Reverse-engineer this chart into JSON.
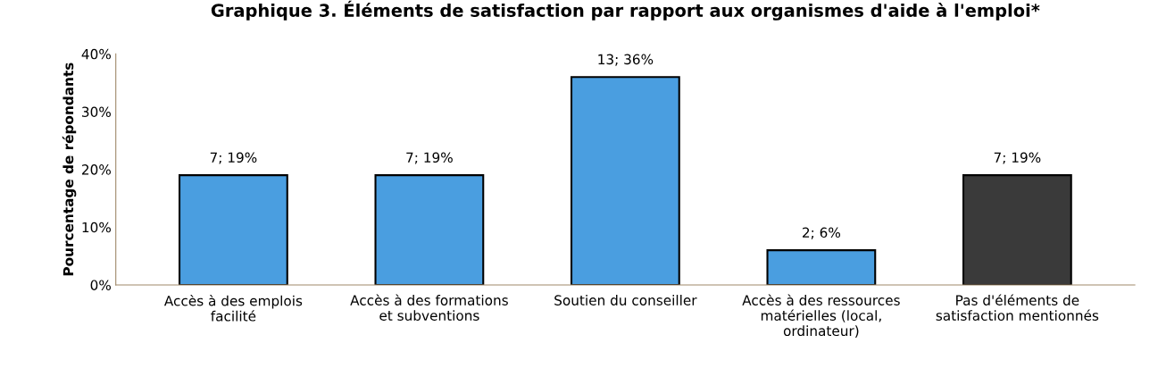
{
  "chart_data": {
    "type": "bar",
    "title": "Graphique 3. Éléments de satisfaction par rapport aux organismes d'aide à l'emploi*",
    "ylabel": "Pourcentage de répondants",
    "categories": [
      "Accès à des emplois\nfacilité",
      "Accès à des formations\net subventions",
      "Soutien du conseiller",
      "Accès à des ressources\nmatérielles (local,\nordinateur)",
      "Pas d'éléments de\nsatisfaction mentionnés"
    ],
    "values": [
      19,
      19,
      36,
      6,
      19
    ],
    "colors": [
      "#4a9ee0",
      "#4a9ee0",
      "#4a9ee0",
      "#4a9ee0",
      "#3a3a3a"
    ],
    "value_labels": [
      "7; 19%",
      "7; 19%",
      "13; 36%",
      "2; 6%",
      "7; 19%"
    ],
    "ylim": [
      0,
      40
    ],
    "yticks": [
      {
        "value": 0,
        "label": "0%"
      },
      {
        "value": 10,
        "label": "10%"
      },
      {
        "value": 20,
        "label": "20%"
      },
      {
        "value": 30,
        "label": "30%"
      },
      {
        "value": 40,
        "label": "40%"
      }
    ],
    "grid": false,
    "legend": false
  }
}
